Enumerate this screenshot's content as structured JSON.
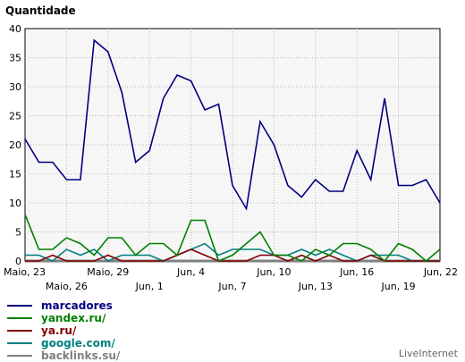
{
  "chart_data": {
    "type": "line",
    "title": "Quantidade",
    "ylim": [
      0,
      40
    ],
    "yticks": [
      0,
      5,
      10,
      15,
      20,
      25,
      30,
      35,
      40
    ],
    "x": [
      "2015-05-23",
      "2015-05-24",
      "2015-05-25",
      "2015-05-26",
      "2015-05-27",
      "2015-05-28",
      "2015-05-29",
      "2015-05-30",
      "2015-05-31",
      "2015-06-01",
      "2015-06-02",
      "2015-06-03",
      "2015-06-04",
      "2015-06-05",
      "2015-06-06",
      "2015-06-07",
      "2015-06-08",
      "2015-06-09",
      "2015-06-10",
      "2015-06-11",
      "2015-06-12",
      "2015-06-13",
      "2015-06-14",
      "2015-06-15",
      "2015-06-16",
      "2015-06-17",
      "2015-06-18",
      "2015-06-19",
      "2015-06-20",
      "2015-06-21",
      "2015-06-22"
    ],
    "xtick_labels_top": [
      "Maio, 23",
      "Maio, 29",
      "Jun, 4",
      "Jun, 10",
      "Jun, 16",
      "Jun, 22"
    ],
    "xtick_labels_bottom": [
      "Maio, 26",
      "Jun, 1",
      "Jun, 7",
      "Jun, 13",
      "Jun, 19"
    ],
    "grid": true,
    "legend_placement": "bottom-left",
    "series": [
      {
        "name": "marcadores",
        "color": "#000080",
        "values": [
          21,
          17,
          17,
          14,
          14,
          38,
          36,
          29,
          17,
          19,
          28,
          32,
          31,
          26,
          27,
          13,
          9,
          24,
          20,
          13,
          11,
          14,
          12,
          12,
          19,
          14,
          28,
          13,
          13,
          14,
          10
        ]
      },
      {
        "name": "yandex.ru/",
        "color": "#008000",
        "values": [
          8,
          2,
          2,
          4,
          3,
          1,
          4,
          4,
          1,
          3,
          3,
          1,
          7,
          7,
          0,
          1,
          3,
          5,
          1,
          1,
          0,
          2,
          1,
          3,
          3,
          2,
          0,
          3,
          2,
          0,
          2
        ]
      },
      {
        "name": "ya.ru/",
        "color": "#800000",
        "values": [
          0,
          0,
          1,
          0,
          0,
          0,
          1,
          0,
          0,
          0,
          0,
          1,
          2,
          1,
          0,
          0,
          0,
          1,
          1,
          0,
          1,
          0,
          1,
          0,
          0,
          1,
          0,
          0,
          0,
          0,
          0
        ]
      },
      {
        "name": "google.com/",
        "color": "#008080",
        "values": [
          1,
          1,
          0,
          2,
          1,
          2,
          0,
          1,
          1,
          1,
          0,
          1,
          2,
          3,
          1,
          2,
          2,
          2,
          1,
          1,
          2,
          1,
          2,
          1,
          0,
          1,
          1,
          1,
          0,
          0,
          0
        ]
      },
      {
        "name": "backlinks.su/",
        "color": "#808080",
        "values": [
          0,
          0,
          0,
          0,
          0,
          0,
          0,
          0,
          0,
          0,
          0,
          0,
          0,
          0,
          0,
          0,
          0,
          0,
          0,
          0,
          0,
          0,
          0,
          0,
          0,
          0,
          0,
          0,
          0,
          0,
          0
        ]
      }
    ]
  },
  "credit": "LiveInternet"
}
